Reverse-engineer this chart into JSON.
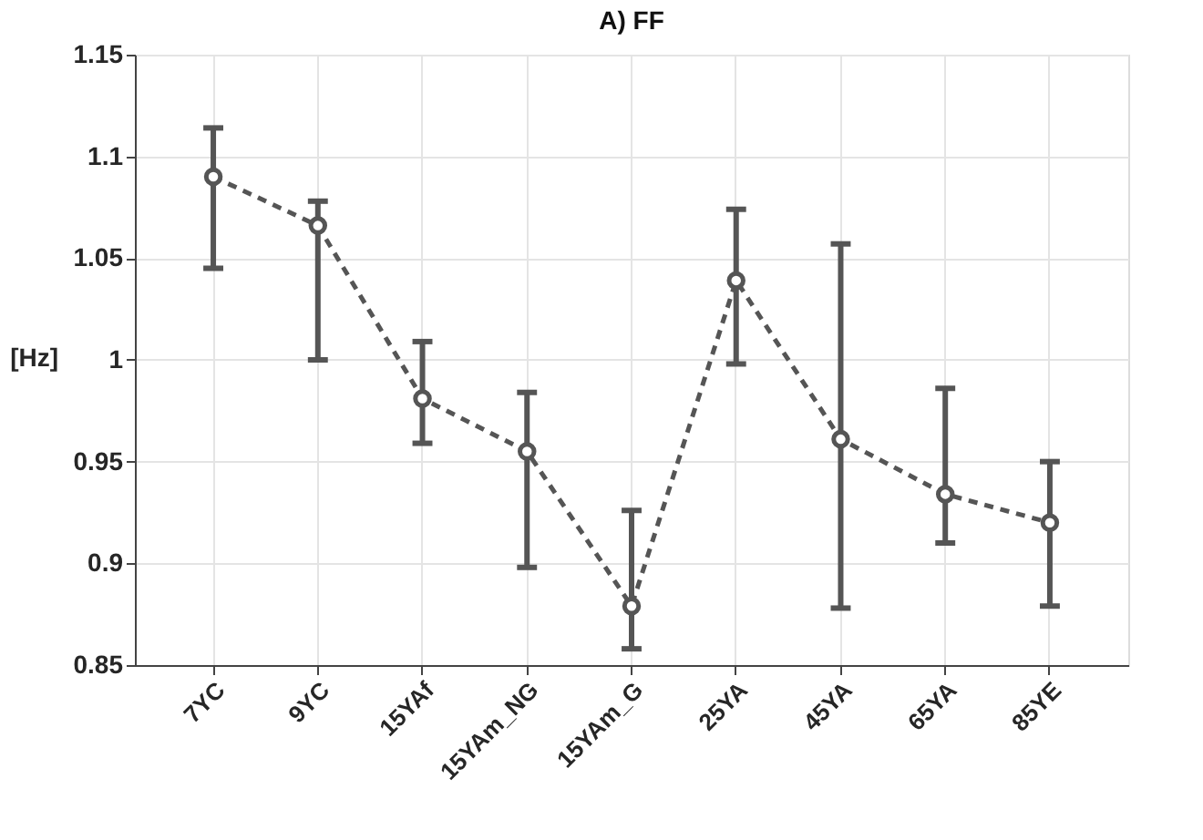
{
  "chart_data": {
    "type": "line",
    "title": "A) FF",
    "ylabel": "[Hz]",
    "categories": [
      "7YC",
      "9YC",
      "15YAf",
      "15YAm_NG",
      "15YAm_G",
      "25YA",
      "45YA",
      "65YA",
      "85YE"
    ],
    "series": [
      {
        "color": "#555555",
        "values": [
          1.09,
          1.066,
          0.981,
          0.955,
          0.879,
          1.039,
          0.961,
          0.934,
          0.92
        ],
        "errors": [
          [
            1.045,
            1.114
          ],
          [
            1.0,
            1.078
          ],
          [
            0.959,
            1.009
          ],
          [
            0.898,
            0.984
          ],
          [
            0.858,
            0.926
          ],
          [
            0.998,
            1.074
          ],
          [
            0.878,
            1.057
          ],
          [
            0.91,
            0.986
          ],
          [
            0.879,
            0.95
          ]
        ]
      }
    ],
    "ylim": [
      0.85,
      1.15
    ],
    "yticks": [
      0.85,
      0.9,
      0.95,
      1,
      1.05,
      1.1,
      1.15
    ],
    "grid": true,
    "marker": "circle",
    "line_style": "dashed"
  }
}
